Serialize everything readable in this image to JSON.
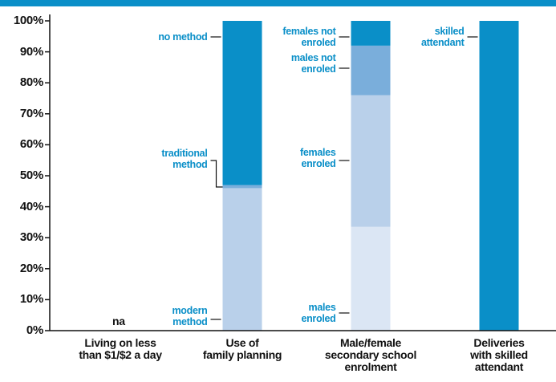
{
  "chart_data": {
    "type": "stacked_bar",
    "categories": [
      "Living on less\nthan $1/$2 a day",
      "Use of\nfamily planning",
      "Male/female\nsecondary school\nenrolment",
      "Deliveries\nwith skilled\nattendant"
    ],
    "series": [
      {
        "name": "modern method",
        "color": "#b9d0ea",
        "values": [
          null,
          46,
          null,
          null
        ]
      },
      {
        "name": "traditional method",
        "color": "#7aaedb",
        "values": [
          null,
          1,
          null,
          null
        ]
      },
      {
        "name": "no method",
        "color": "#0a8fc8",
        "values": [
          null,
          53,
          null,
          null
        ]
      },
      {
        "name": "males enroled",
        "color": "#dbe6f4",
        "values": [
          null,
          null,
          33.5,
          null
        ]
      },
      {
        "name": "females enroled",
        "color": "#b9d0ea",
        "values": [
          null,
          null,
          42.5,
          null
        ]
      },
      {
        "name": "males not enroled",
        "color": "#7aaedb",
        "values": [
          null,
          null,
          16,
          null
        ]
      },
      {
        "name": "females not enroled",
        "color": "#0a8fc8",
        "values": [
          null,
          null,
          8,
          null
        ]
      },
      {
        "name": "skilled attendant",
        "color": "#0a8fc8",
        "values": [
          null,
          null,
          null,
          100
        ]
      }
    ],
    "annotations": [
      {
        "text": "na",
        "category": 0
      }
    ],
    "ylim": [
      0,
      100
    ],
    "yticks": [
      {
        "value": 0,
        "label": "0%"
      },
      {
        "value": 10,
        "label": "10%"
      },
      {
        "value": 20,
        "label": "20%"
      },
      {
        "value": 30,
        "label": "30%"
      },
      {
        "value": 40,
        "label": "40%"
      },
      {
        "value": 50,
        "label": "50%"
      },
      {
        "value": 60,
        "label": "60%"
      },
      {
        "value": 70,
        "label": "70%"
      },
      {
        "value": 80,
        "label": "80%"
      },
      {
        "value": 90,
        "label": "90%"
      },
      {
        "value": 100,
        "label": "100%"
      }
    ]
  }
}
